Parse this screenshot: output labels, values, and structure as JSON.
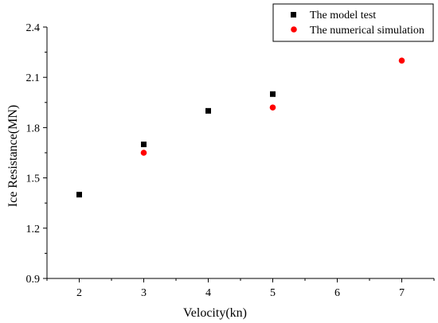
{
  "chart_data": {
    "type": "scatter",
    "xlabel": "Velocity(kn)",
    "ylabel": "Ice Resistance(MN)",
    "xlim": [
      1.5,
      7.5
    ],
    "ylim": [
      0.9,
      2.4
    ],
    "xticks": [
      2,
      3,
      4,
      5,
      6,
      7
    ],
    "yticks": [
      0.9,
      1.2,
      1.5,
      1.8,
      2.1,
      2.4
    ],
    "ytick_labels": [
      "0.9",
      "1.2",
      "1.5",
      "1.8",
      "2.1",
      "2.4"
    ],
    "grid": false,
    "legend_position": "top-right",
    "series": [
      {
        "name": "The model test",
        "marker": "square",
        "color": "#000000",
        "x": [
          2,
          3,
          4,
          5
        ],
        "y": [
          1.4,
          1.7,
          1.9,
          2.0
        ]
      },
      {
        "name": "The numerical simulation",
        "marker": "circle",
        "color": "#ff0000",
        "x": [
          3,
          5,
          7
        ],
        "y": [
          1.65,
          1.92,
          2.2
        ]
      }
    ]
  }
}
